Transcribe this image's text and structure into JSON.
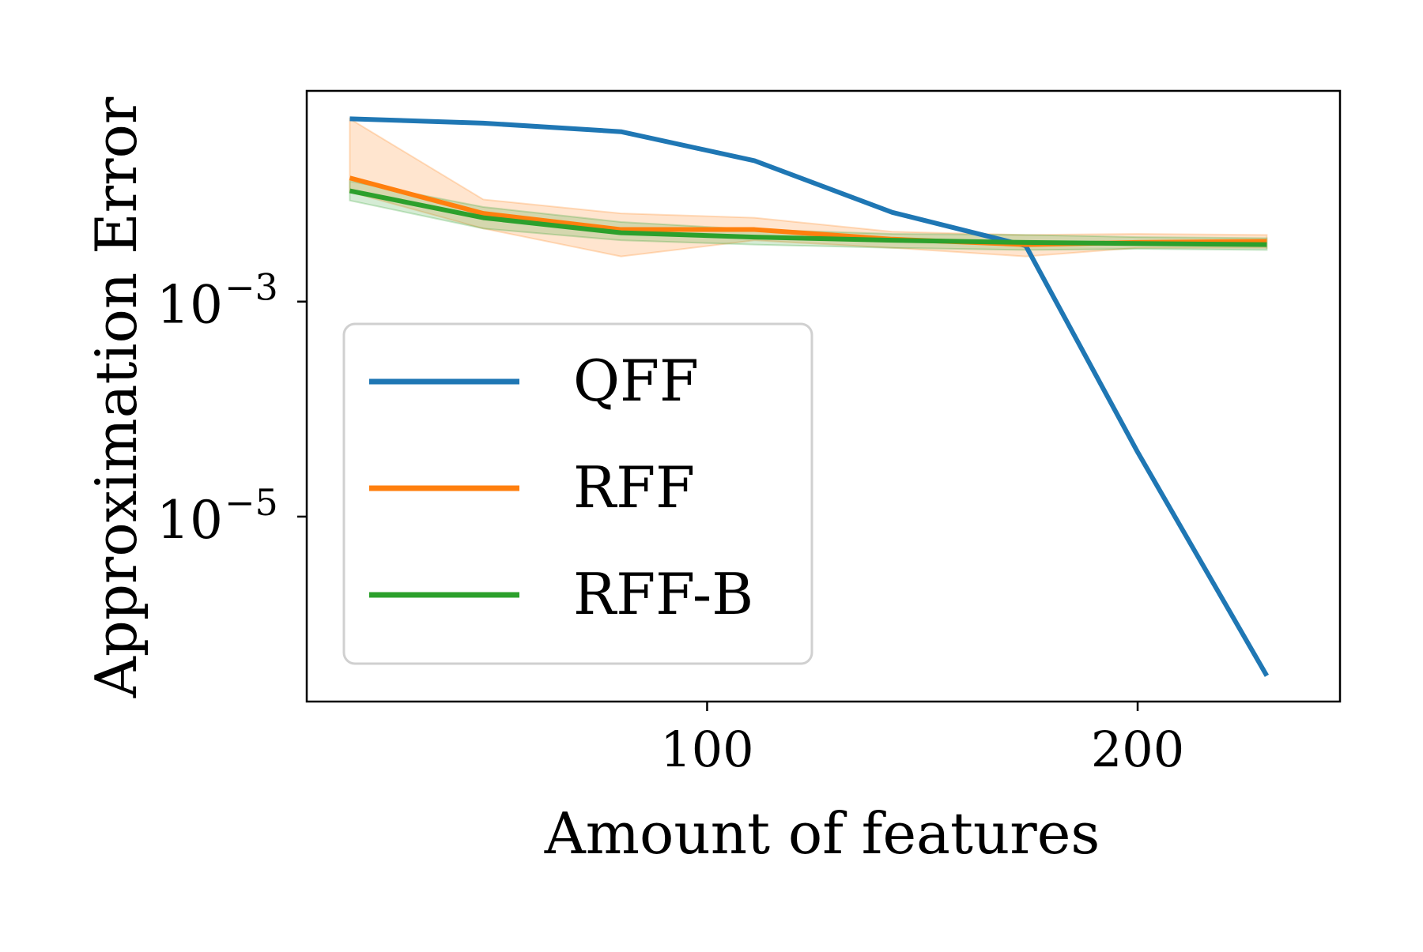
{
  "chart_data": {
    "type": "line",
    "title": "",
    "xlabel": "Amount of features",
    "ylabel": "Approximation Error",
    "yscale": "log",
    "xlim": [
      7,
      247
    ],
    "ylim_log10": [
      -6.72,
      -1.04
    ],
    "xticks": [
      {
        "value": 100,
        "label": "100"
      },
      {
        "value": 200,
        "label": "200"
      }
    ],
    "yticks": [
      {
        "log10": -3,
        "base": "10",
        "exp": "−3"
      },
      {
        "log10": -5,
        "base": "10",
        "exp": "−5"
      }
    ],
    "grid": false,
    "legend_position": "center-left",
    "x": [
      17,
      48,
      80,
      111,
      143,
      174,
      200,
      230
    ],
    "series": [
      {
        "name": "QFF",
        "color": "#1f77b4",
        "log10_values": [
          -1.3,
          -1.34,
          -1.42,
          -1.69,
          -2.17,
          -2.48,
          -4.4,
          -6.48
        ]
      },
      {
        "name": "RFF",
        "color": "#ff7f0e",
        "log10_values": [
          -1.85,
          -2.18,
          -2.33,
          -2.33,
          -2.42,
          -2.47,
          -2.45,
          -2.44
        ],
        "band_low": [
          -1.98,
          -2.32,
          -2.58,
          -2.43,
          -2.5,
          -2.58,
          -2.5,
          -2.5
        ],
        "band_high": [
          -1.3,
          -2.05,
          -2.18,
          -2.22,
          -2.35,
          -2.38,
          -2.37,
          -2.38
        ]
      },
      {
        "name": "RFF-B",
        "color": "#2ca02c",
        "log10_values": [
          -1.97,
          -2.22,
          -2.36,
          -2.4,
          -2.43,
          -2.45,
          -2.46,
          -2.47
        ],
        "band_low": [
          -2.06,
          -2.32,
          -2.43,
          -2.47,
          -2.5,
          -2.52,
          -2.51,
          -2.52
        ],
        "band_high": [
          -1.88,
          -2.12,
          -2.26,
          -2.33,
          -2.37,
          -2.38,
          -2.4,
          -2.41
        ]
      }
    ]
  }
}
